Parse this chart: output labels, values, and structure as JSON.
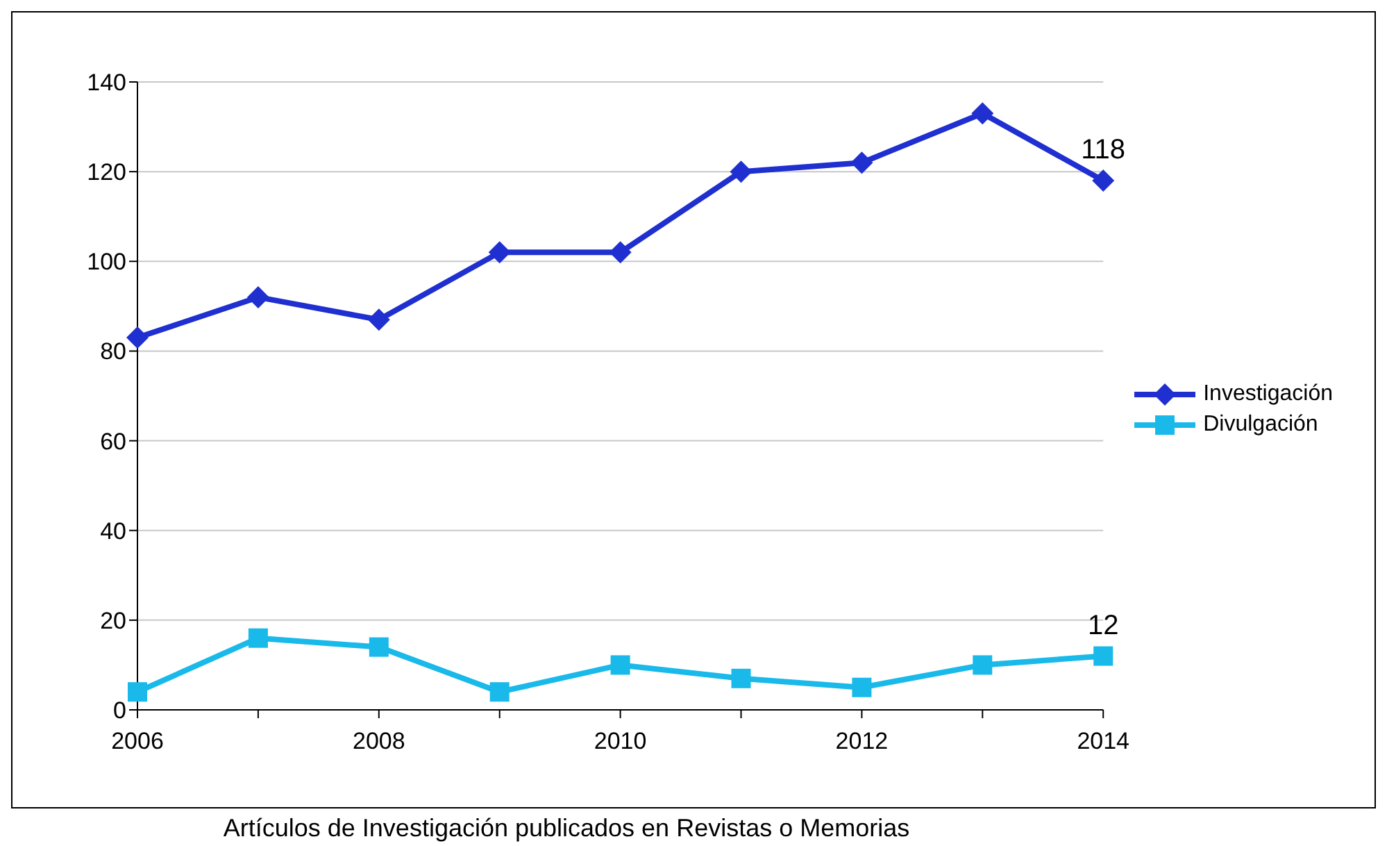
{
  "chart_data": {
    "type": "line",
    "categories": [
      "2006",
      null,
      "2008",
      null,
      "2010",
      null,
      "2012",
      null,
      "2014"
    ],
    "series": [
      {
        "name": "Investigación",
        "color": "#1f2fd0",
        "marker": "diamond",
        "values": [
          83,
          92,
          87,
          102,
          102,
          120,
          122,
          133,
          118
        ],
        "value_labels": [
          null,
          null,
          null,
          null,
          null,
          null,
          null,
          null,
          "118"
        ]
      },
      {
        "name": "Divulgación",
        "color": "#19b9ea",
        "marker": "square",
        "values": [
          4,
          16,
          14,
          4,
          10,
          7,
          5,
          10,
          12
        ],
        "value_labels": [
          null,
          null,
          null,
          null,
          null,
          null,
          null,
          null,
          "12"
        ]
      }
    ],
    "ylim": [
      0,
      140
    ],
    "yticks": [
      0,
      20,
      40,
      60,
      80,
      100,
      120,
      140
    ],
    "grid": "y",
    "legend": "right",
    "line_style": "solid",
    "annotations": [
      "Artículos de Investigación publicados en Revistas o Memorias"
    ]
  }
}
